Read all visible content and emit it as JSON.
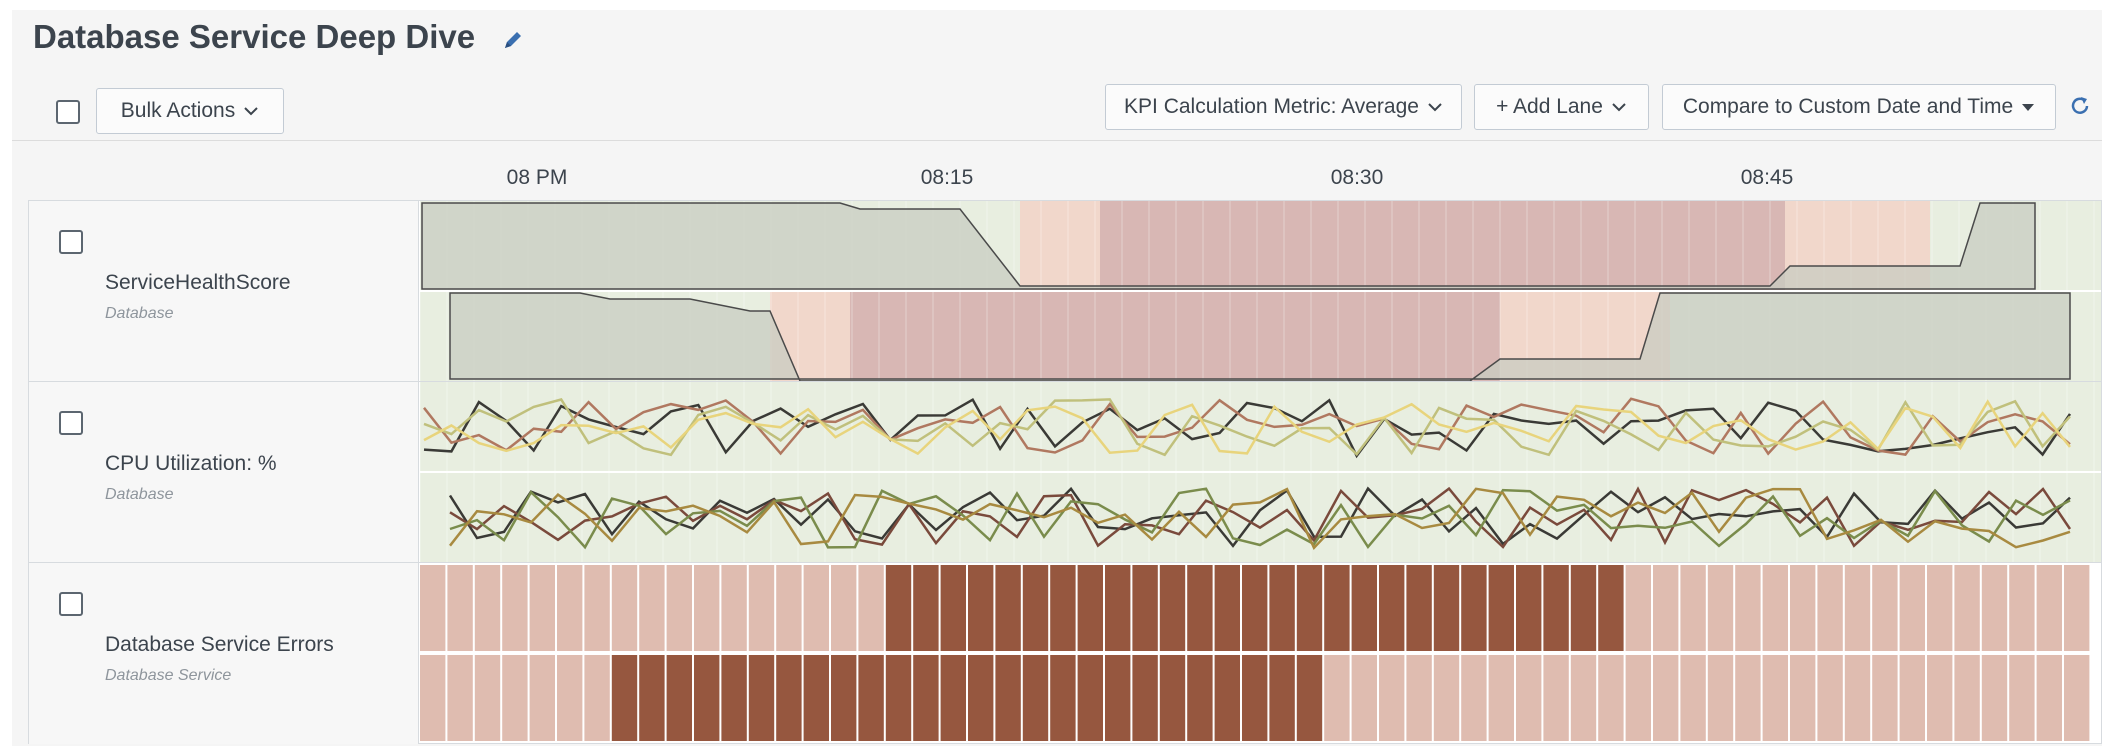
{
  "header": {
    "title": "Database Service Deep Dive",
    "edit_icon": "pencil-icon"
  },
  "toolbar": {
    "bulk_actions_label": "Bulk Actions",
    "kpi_metric_label": "KPI Calculation Metric: Average",
    "add_lane_label": "+ Add Lane",
    "compare_label": "Compare to Custom Date and Time",
    "refresh_icon": "refresh-icon"
  },
  "timeline": {
    "ticks": [
      "08 PM",
      "08:15",
      "08:30",
      "08:45"
    ]
  },
  "lanes": [
    {
      "name": "ServiceHealthScore",
      "entity": "Database"
    },
    {
      "name": "CPU Utilization: %",
      "entity": "Database"
    },
    {
      "name": "Database Service Errors",
      "entity": "Database Service"
    }
  ],
  "colors": {
    "normal_bg": "#e8eee0",
    "warning_bg": "#f1d7cb",
    "critical_bg": "#d8b7b4",
    "area_fill": "#c8ccc2",
    "error_light": "#dfbcb0",
    "error_dark": "#96573f",
    "series": [
      "#3a3a36",
      "#b07860",
      "#c0c07c",
      "#e8d47c",
      "#a88a40",
      "#7a8c4c",
      "#7a4a3c"
    ]
  }
}
